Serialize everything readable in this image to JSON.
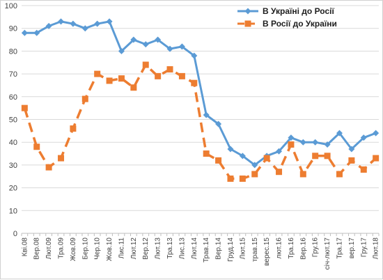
{
  "chart_data": {
    "type": "line",
    "title": "",
    "xlabel": "",
    "ylabel": "",
    "ylim": [
      0,
      100
    ],
    "yticks": [
      0,
      10,
      20,
      30,
      40,
      50,
      60,
      70,
      80,
      90,
      100
    ],
    "grid": true,
    "legend_position": "top-right",
    "categories": [
      "Кві.08",
      "",
      "Вер.08",
      "",
      "Лют.09",
      "",
      "Тра.09",
      "",
      "Жов.09",
      "",
      "Бер.10",
      "",
      "Чер.10",
      "",
      "Жов.10",
      "",
      "Лис.11",
      "",
      "Лют.12",
      "",
      "Вер.12",
      "",
      "Лют.13",
      "",
      "Тра.13",
      "",
      "Лис.13",
      "",
      "Лют.14",
      "",
      "Трав.14",
      "",
      "Вер.14",
      "",
      "Груд.14",
      "",
      "Лют.15",
      "",
      "трав.15",
      "",
      "верес.15",
      "",
      "лют.16",
      "",
      "Тра.16",
      "",
      "Вер.16",
      "",
      "Гру.16",
      "",
      "січ-лют.17",
      "",
      "Тра.17",
      "",
      "вер.17",
      "",
      "Гру.17",
      "",
      "Лют.18"
    ],
    "series": [
      {
        "name": "В Україні до Росії",
        "color": "#5b9bd5",
        "marker": "diamond",
        "dash": "solid",
        "values": [
          88,
          null,
          88,
          null,
          91,
          null,
          93,
          null,
          92,
          null,
          90,
          null,
          92,
          null,
          93,
          null,
          80,
          null,
          85,
          null,
          83,
          null,
          85,
          null,
          81,
          null,
          82,
          null,
          78,
          null,
          52,
          null,
          48,
          null,
          37,
          null,
          34,
          null,
          30,
          null,
          34,
          null,
          36,
          null,
          42,
          null,
          40,
          null,
          40,
          null,
          39,
          null,
          44,
          null,
          37,
          null,
          42,
          null,
          44
        ]
      },
      {
        "name": "В Росії до України",
        "color": "#ed7d31",
        "marker": "square",
        "dash": "dashed",
        "values": [
          55,
          null,
          38,
          null,
          29,
          null,
          33,
          null,
          46,
          null,
          59,
          null,
          70,
          null,
          67,
          null,
          68,
          null,
          64,
          null,
          74,
          null,
          69,
          null,
          72,
          null,
          69,
          null,
          66,
          null,
          35,
          null,
          32,
          null,
          24,
          null,
          24,
          null,
          26,
          null,
          33,
          null,
          27,
          null,
          39,
          null,
          26,
          null,
          34,
          null,
          34,
          null,
          26,
          null,
          32,
          null,
          28,
          null,
          33
        ]
      }
    ]
  }
}
